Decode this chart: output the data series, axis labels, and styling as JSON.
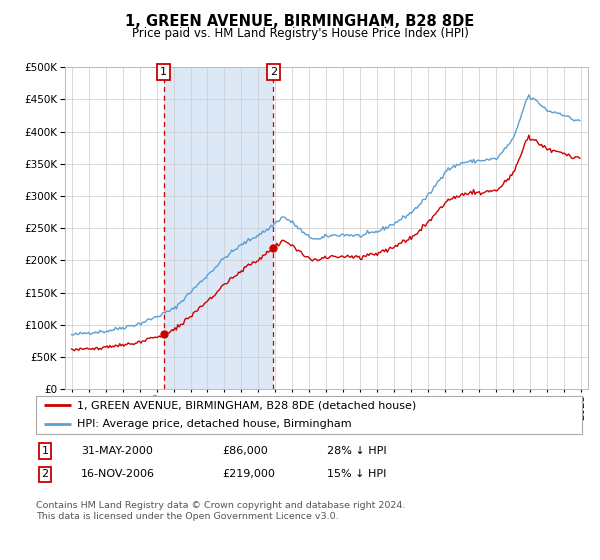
{
  "title": "1, GREEN AVENUE, BIRMINGHAM, B28 8DE",
  "subtitle": "Price paid vs. HM Land Registry's House Price Index (HPI)",
  "footer": "Contains HM Land Registry data © Crown copyright and database right 2024.\nThis data is licensed under the Open Government Licence v3.0.",
  "legend_line1": "1, GREEN AVENUE, BIRMINGHAM, B28 8DE (detached house)",
  "legend_line2": "HPI: Average price, detached house, Birmingham",
  "sale1_date": "31-MAY-2000",
  "sale1_price": "£86,000",
  "sale1_hpi": "28% ↓ HPI",
  "sale2_date": "16-NOV-2006",
  "sale2_price": "£219,000",
  "sale2_hpi": "15% ↓ HPI",
  "sale1_x": 2000.42,
  "sale1_y": 86000,
  "sale2_x": 2006.88,
  "sale2_y": 219000,
  "hpi_color": "#5a9fd4",
  "sold_color": "#cc0000",
  "highlight_color": "#dce8f5",
  "background_color": "#ffffff",
  "grid_color": "#cccccc",
  "ylim": [
    0,
    500000
  ],
  "yticks": [
    0,
    50000,
    100000,
    150000,
    200000,
    250000,
    300000,
    350000,
    400000,
    450000,
    500000
  ],
  "xlim_start": 1994.6,
  "xlim_end": 2025.4,
  "title_fontsize": 10.5,
  "subtitle_fontsize": 8.5,
  "axis_fontsize": 7.5,
  "legend_fontsize": 8
}
